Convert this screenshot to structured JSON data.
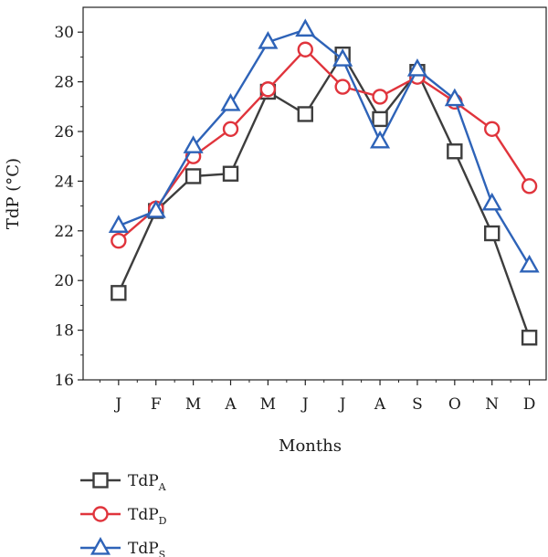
{
  "chart_data": {
    "type": "line",
    "xlabel": "Months",
    "ylabel": "TdP (°C)",
    "ylim": [
      16,
      31
    ],
    "yticks": [
      16,
      18,
      20,
      22,
      24,
      26,
      28,
      30
    ],
    "categories": [
      "J",
      "F",
      "M",
      "A",
      "M",
      "J",
      "J",
      "A",
      "S",
      "O",
      "N",
      "D"
    ],
    "grid": false,
    "legend_position": "bottom-left",
    "series": [
      {
        "name": "TdP",
        "name_sub": "A",
        "marker": "square",
        "color": "#3d3d3d",
        "values": [
          19.5,
          22.8,
          24.2,
          24.3,
          27.6,
          26.7,
          29.1,
          26.5,
          28.4,
          25.2,
          21.9,
          17.7
        ]
      },
      {
        "name": "TdP",
        "name_sub": "D",
        "marker": "circle",
        "color": "#e0343c",
        "values": [
          21.6,
          22.9,
          25.0,
          26.1,
          27.7,
          29.3,
          27.8,
          27.4,
          28.2,
          27.2,
          26.1,
          23.8
        ]
      },
      {
        "name": "TdP",
        "name_sub": "S",
        "marker": "triangle",
        "color": "#2e63b8",
        "values": [
          22.2,
          22.8,
          25.4,
          27.1,
          29.6,
          30.1,
          28.9,
          25.6,
          28.5,
          27.3,
          23.1,
          20.6
        ]
      }
    ]
  }
}
